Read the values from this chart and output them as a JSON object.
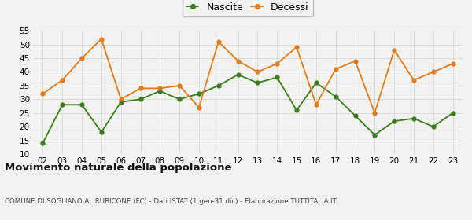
{
  "years": [
    2,
    3,
    4,
    5,
    6,
    7,
    8,
    9,
    10,
    11,
    12,
    13,
    14,
    15,
    16,
    17,
    18,
    19,
    20,
    21,
    22,
    23
  ],
  "nascite": [
    14,
    28,
    28,
    18,
    29,
    30,
    33,
    30,
    32,
    35,
    39,
    36,
    38,
    26,
    36,
    31,
    24,
    17,
    22,
    23,
    20,
    25
  ],
  "decessi": [
    32,
    37,
    45,
    52,
    30,
    34,
    34,
    35,
    27,
    51,
    44,
    40,
    43,
    49,
    28,
    41,
    44,
    25,
    48,
    37,
    40,
    43
  ],
  "nascite_color": "#3a7d1e",
  "decessi_color": "#e07b20",
  "ylim": [
    10,
    55
  ],
  "yticks": [
    10,
    15,
    20,
    25,
    30,
    35,
    40,
    45,
    50,
    55
  ],
  "title": "Movimento naturale della popolazione",
  "subtitle": "COMUNE DI SOGLIANO AL RUBICONE (FC) - Dati ISTAT (1 gen-31 dic) - Elaborazione TUTTITALIA.IT",
  "legend_nascite": "Nascite",
  "legend_decessi": "Decessi",
  "background_color": "#f2f2ee",
  "grid_color": "#d8d8d8"
}
